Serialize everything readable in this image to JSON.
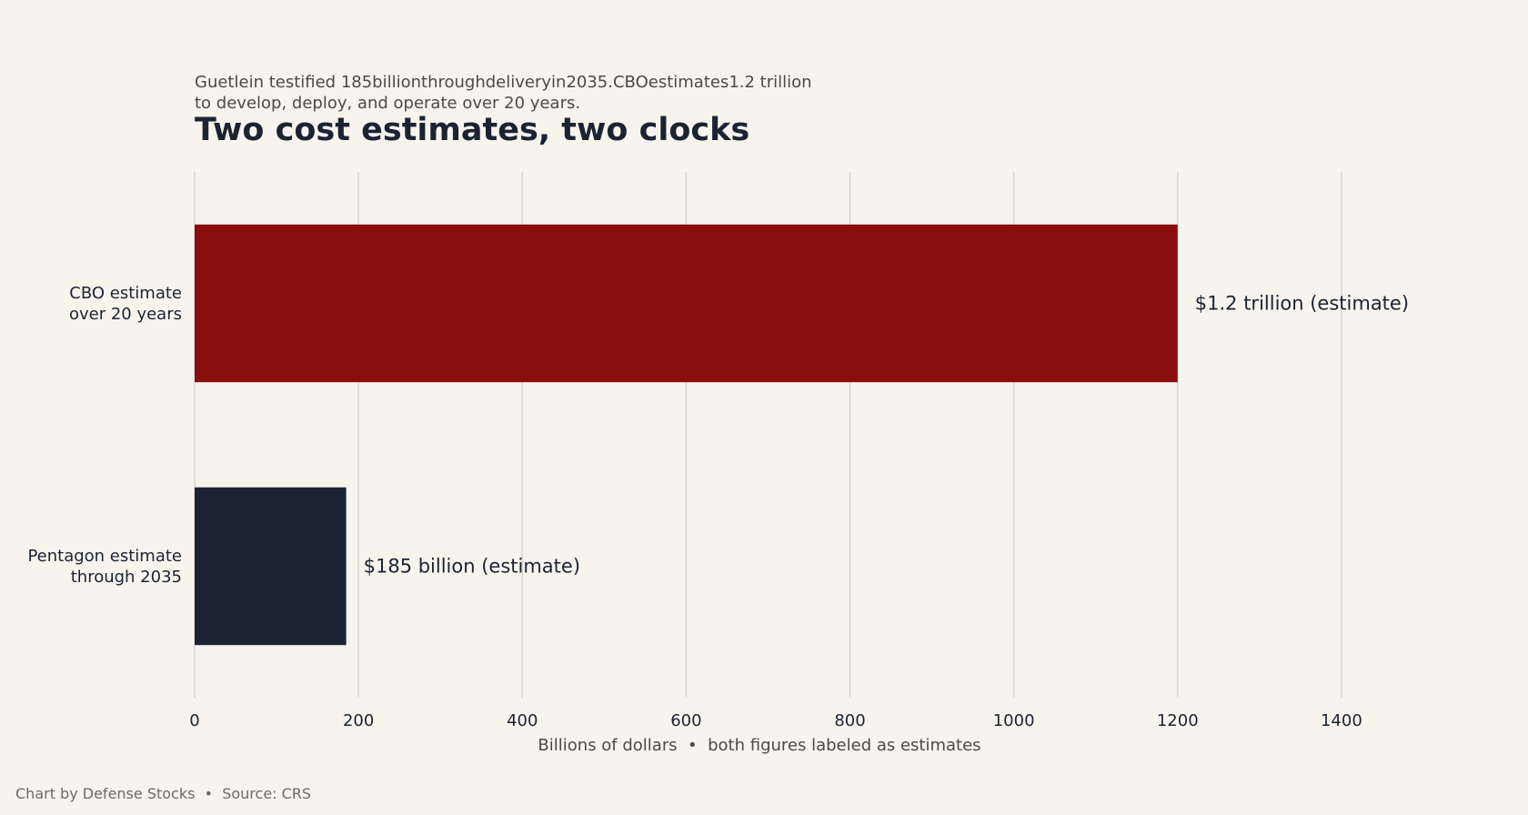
{
  "chart_data": {
    "type": "bar",
    "orientation": "horizontal",
    "title": "Two cost estimates, two clocks",
    "subtitle": [
      "Guetlein testified 185billionthroughdeliveryin2035.CBOestimates1.2 trillion",
      "to develop, deploy, and operate over 20 years."
    ],
    "categories": [
      [
        "CBO estimate",
        "over 20 years"
      ],
      [
        "Pentagon estimate",
        "through 2035"
      ]
    ],
    "values": [
      1200,
      185
    ],
    "value_labels": [
      "$1.2 trillion (estimate)",
      "$185 billion (estimate)"
    ],
    "bar_colors": [
      "#8b0e0e",
      "#1b2333"
    ],
    "xlabel": "Billions of dollars  •  both figures labeled as estimates",
    "ylabel": "",
    "xlim": [
      0,
      1550
    ],
    "xticks": [
      0,
      200,
      400,
      600,
      800,
      1000,
      1200,
      1400
    ],
    "grid": "vertical",
    "footer": "Chart by Defense Stocks  •  Source: CRS"
  }
}
